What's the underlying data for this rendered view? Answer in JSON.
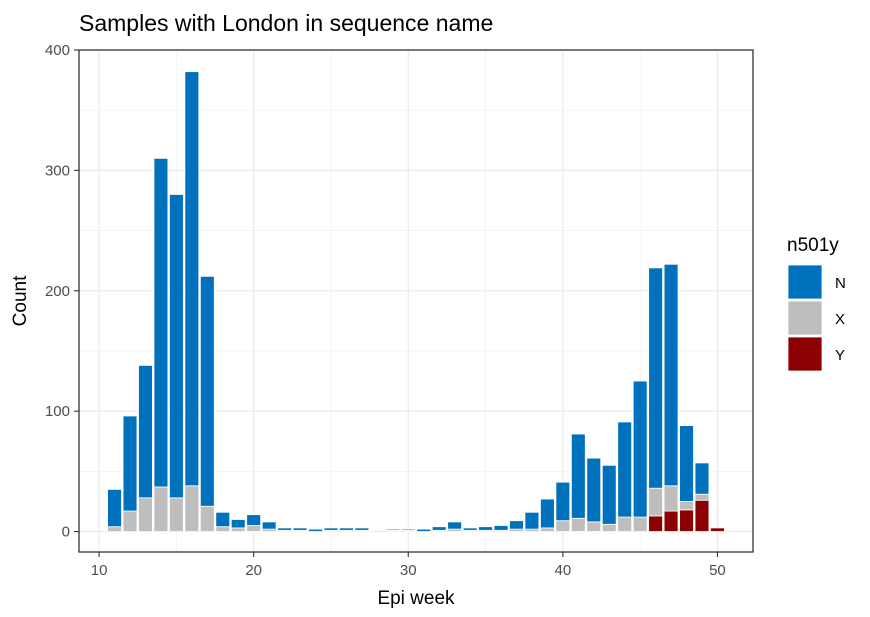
{
  "chart_data": {
    "type": "bar",
    "stacked": true,
    "title": "Samples with London in sequence name",
    "xlabel": "Epi week",
    "ylabel": "Count",
    "xlim": [
      8.7,
      52.3
    ],
    "ylim": [
      -17,
      400
    ],
    "xticks": [
      10,
      20,
      30,
      40,
      50
    ],
    "yticks": [
      0,
      100,
      200,
      300,
      400
    ],
    "grid": true,
    "legend": {
      "title": "n501y",
      "position": "right",
      "entries": [
        {
          "name": "N",
          "color": "#0072bd"
        },
        {
          "name": "X",
          "color": "#bebebe"
        },
        {
          "name": "Y",
          "color": "#8b0000"
        }
      ]
    },
    "x": [
      11,
      12,
      13,
      14,
      15,
      16,
      17,
      18,
      19,
      20,
      21,
      22,
      23,
      24,
      25,
      26,
      27,
      28,
      29,
      30,
      31,
      32,
      33,
      34,
      35,
      36,
      37,
      38,
      39,
      40,
      41,
      42,
      43,
      44,
      45,
      46,
      47,
      48,
      49,
      50
    ],
    "series": [
      {
        "name": "Y",
        "color": "#8b0000",
        "values": [
          0,
          0,
          0,
          0,
          0,
          0,
          0,
          0,
          0,
          0,
          0,
          0,
          0,
          0,
          0,
          0,
          0,
          0,
          0,
          0,
          0,
          0,
          0,
          0,
          0,
          0,
          0,
          0,
          0,
          0,
          0,
          0,
          0,
          0,
          0,
          13,
          17,
          18,
          26,
          3
        ]
      },
      {
        "name": "X",
        "color": "#bebebe",
        "values": [
          4,
          17,
          28,
          37,
          28,
          38,
          21,
          4,
          3,
          5,
          2,
          1,
          1,
          0,
          1,
          1,
          1,
          0,
          1,
          1,
          0,
          1,
          2,
          1,
          1,
          1,
          2,
          2,
          3,
          9,
          11,
          8,
          6,
          12,
          12,
          23,
          21,
          7,
          5,
          0
        ]
      },
      {
        "name": "N",
        "color": "#0072bd",
        "values": [
          31,
          79,
          110,
          273,
          252,
          344,
          191,
          12,
          7,
          9,
          6,
          2,
          2,
          2,
          2,
          2,
          2,
          0,
          1,
          1,
          2,
          3,
          6,
          2,
          3,
          4,
          7,
          14,
          24,
          32,
          70,
          53,
          49,
          79,
          113,
          183,
          184,
          63,
          26,
          0
        ]
      }
    ]
  }
}
